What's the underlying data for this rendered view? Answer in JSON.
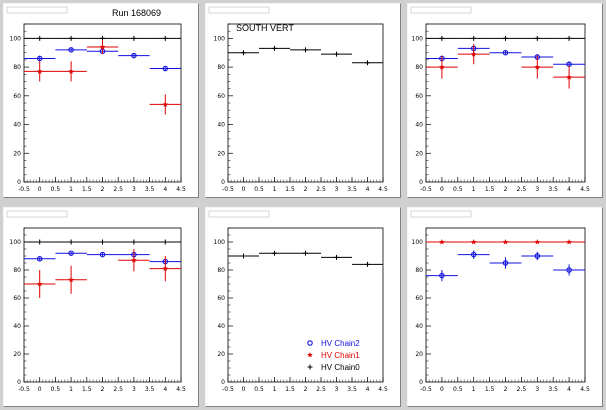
{
  "page": {
    "run_label": "Run 168069",
    "south_label": "SOUTH VERT"
  },
  "colors": {
    "chain2": "#1010e0",
    "chain1": "#e00000",
    "chain0": "#000000"
  },
  "legend": {
    "entries": [
      {
        "label": "HV Chain2",
        "marker": "open-circle",
        "color": "#1010e0"
      },
      {
        "label": "HV Chain1",
        "marker": "star",
        "color": "#e00000"
      },
      {
        "label": "HV Chain0",
        "marker": "plus",
        "color": "#000000"
      }
    ]
  },
  "chart_data": [
    {
      "type": "scatter",
      "title": "",
      "xlim": [
        -0.5,
        4.5
      ],
      "ylim": [
        0,
        110
      ],
      "xticks": [
        "-0.5",
        "0",
        "0.5",
        "1",
        "1.5",
        "2",
        "2.5",
        "3",
        "3.5",
        "4",
        "4.5"
      ],
      "yticks": [
        "0",
        "20",
        "40",
        "60",
        "80",
        "100"
      ],
      "series": [
        {
          "color": "#000000",
          "marker": "plus",
          "x": [
            0,
            1,
            2,
            3,
            4
          ],
          "y": [
            100,
            100,
            100,
            100,
            100
          ],
          "yerr": [
            0,
            0,
            0,
            0,
            0
          ]
        },
        {
          "color": "#1010e0",
          "marker": "open-circle",
          "x": [
            0,
            1,
            2,
            3,
            4
          ],
          "y": [
            86,
            92,
            91,
            88,
            79
          ],
          "yerr": [
            2,
            1,
            1,
            1,
            1
          ]
        },
        {
          "color": "#e00000",
          "marker": "star",
          "x": [
            0,
            1,
            2,
            3,
            4
          ],
          "y": [
            77,
            77,
            94,
            null,
            54
          ],
          "yerr": [
            7,
            7,
            5,
            0,
            7
          ]
        }
      ]
    },
    {
      "type": "scatter",
      "title": "",
      "xlim": [
        -0.5,
        4.5
      ],
      "ylim": [
        0,
        110
      ],
      "xticks": [
        "-0.5",
        "0",
        "0.5",
        "1",
        "1.5",
        "2",
        "2.5",
        "3",
        "3.5",
        "4",
        "4.5"
      ],
      "yticks": [
        "0",
        "20",
        "40",
        "60",
        "80",
        "100"
      ],
      "series": [
        {
          "color": "#000000",
          "marker": "plus",
          "x": [
            0,
            1,
            2,
            3,
            4
          ],
          "y": [
            90,
            93,
            92,
            89,
            83
          ],
          "yerr": [
            1,
            1,
            1,
            1,
            1
          ]
        }
      ]
    },
    {
      "type": "scatter",
      "title": "",
      "xlim": [
        -0.5,
        4.5
      ],
      "ylim": [
        0,
        110
      ],
      "xticks": [
        "-0.5",
        "0",
        "0.5",
        "1",
        "1.5",
        "2",
        "2.5",
        "3",
        "3.5",
        "4",
        "4.5"
      ],
      "yticks": [
        "0",
        "20",
        "40",
        "60",
        "80",
        "100"
      ],
      "series": [
        {
          "color": "#000000",
          "marker": "plus",
          "x": [
            0,
            1,
            2,
            3,
            4
          ],
          "y": [
            100,
            100,
            100,
            100,
            100
          ],
          "yerr": [
            0,
            0,
            0,
            0,
            0
          ]
        },
        {
          "color": "#1010e0",
          "marker": "open-circle",
          "x": [
            0,
            1,
            2,
            3,
            4
          ],
          "y": [
            86,
            93,
            90,
            87,
            82
          ],
          "yerr": [
            2,
            2,
            1,
            2,
            2
          ]
        },
        {
          "color": "#e00000",
          "marker": "star",
          "x": [
            0,
            1,
            2,
            3,
            4
          ],
          "y": [
            80,
            89,
            null,
            80,
            73
          ],
          "yerr": [
            8,
            7,
            0,
            8,
            8
          ]
        }
      ]
    },
    {
      "type": "scatter",
      "title": "",
      "xlim": [
        -0.5,
        4.5
      ],
      "ylim": [
        0,
        110
      ],
      "xticks": [
        "-0.5",
        "0",
        "0.5",
        "1",
        "1.5",
        "2",
        "2.5",
        "3",
        "3.5",
        "4",
        "4.5"
      ],
      "yticks": [
        "0",
        "20",
        "40",
        "60",
        "80",
        "100"
      ],
      "series": [
        {
          "color": "#000000",
          "marker": "plus",
          "x": [
            0,
            1,
            2,
            3,
            4
          ],
          "y": [
            100,
            100,
            100,
            100,
            100
          ],
          "yerr": [
            0,
            0,
            0,
            0,
            0
          ]
        },
        {
          "color": "#1010e0",
          "marker": "open-circle",
          "x": [
            0,
            1,
            2,
            3,
            4
          ],
          "y": [
            88,
            92,
            91,
            91,
            86
          ],
          "yerr": [
            1,
            1,
            1,
            2,
            2
          ]
        },
        {
          "color": "#e00000",
          "marker": "star",
          "x": [
            0,
            1,
            2,
            3,
            4
          ],
          "y": [
            70,
            73,
            null,
            87,
            81
          ],
          "yerr": [
            10,
            10,
            0,
            8,
            9
          ]
        }
      ]
    },
    {
      "type": "scatter",
      "title": "",
      "xlim": [
        -0.5,
        4.5
      ],
      "ylim": [
        0,
        110
      ],
      "xticks": [
        "-0.5",
        "0",
        "0.5",
        "1",
        "1.5",
        "2",
        "2.5",
        "3",
        "3.5",
        "4",
        "4.5"
      ],
      "yticks": [
        "0",
        "20",
        "40",
        "60",
        "80",
        "100"
      ],
      "series": [
        {
          "color": "#000000",
          "marker": "plus",
          "x": [
            0,
            1,
            2,
            3,
            4
          ],
          "y": [
            90,
            92,
            92,
            89,
            84
          ],
          "yerr": [
            1,
            1,
            1,
            1,
            1
          ]
        }
      ]
    },
    {
      "type": "scatter",
      "title": "",
      "xlim": [
        -0.5,
        4.5
      ],
      "ylim": [
        0,
        110
      ],
      "xticks": [
        "-0.5",
        "0",
        "0.5",
        "1",
        "1.5",
        "2",
        "2.5",
        "3",
        "3.5",
        "4",
        "4.5"
      ],
      "yticks": [
        "0",
        "20",
        "40",
        "60",
        "80",
        "100"
      ],
      "series": [
        {
          "color": "#e00000",
          "marker": "star",
          "x": [
            0,
            1,
            2,
            3,
            4
          ],
          "y": [
            100,
            100,
            100,
            100,
            100
          ],
          "yerr": [
            0,
            0,
            0,
            0,
            0
          ]
        },
        {
          "color": "#1010e0",
          "marker": "open-circle",
          "x": [
            0,
            1,
            2,
            3,
            4
          ],
          "y": [
            76,
            91,
            85,
            90,
            80
          ],
          "yerr": [
            4,
            3,
            4,
            3,
            4
          ]
        }
      ]
    }
  ]
}
